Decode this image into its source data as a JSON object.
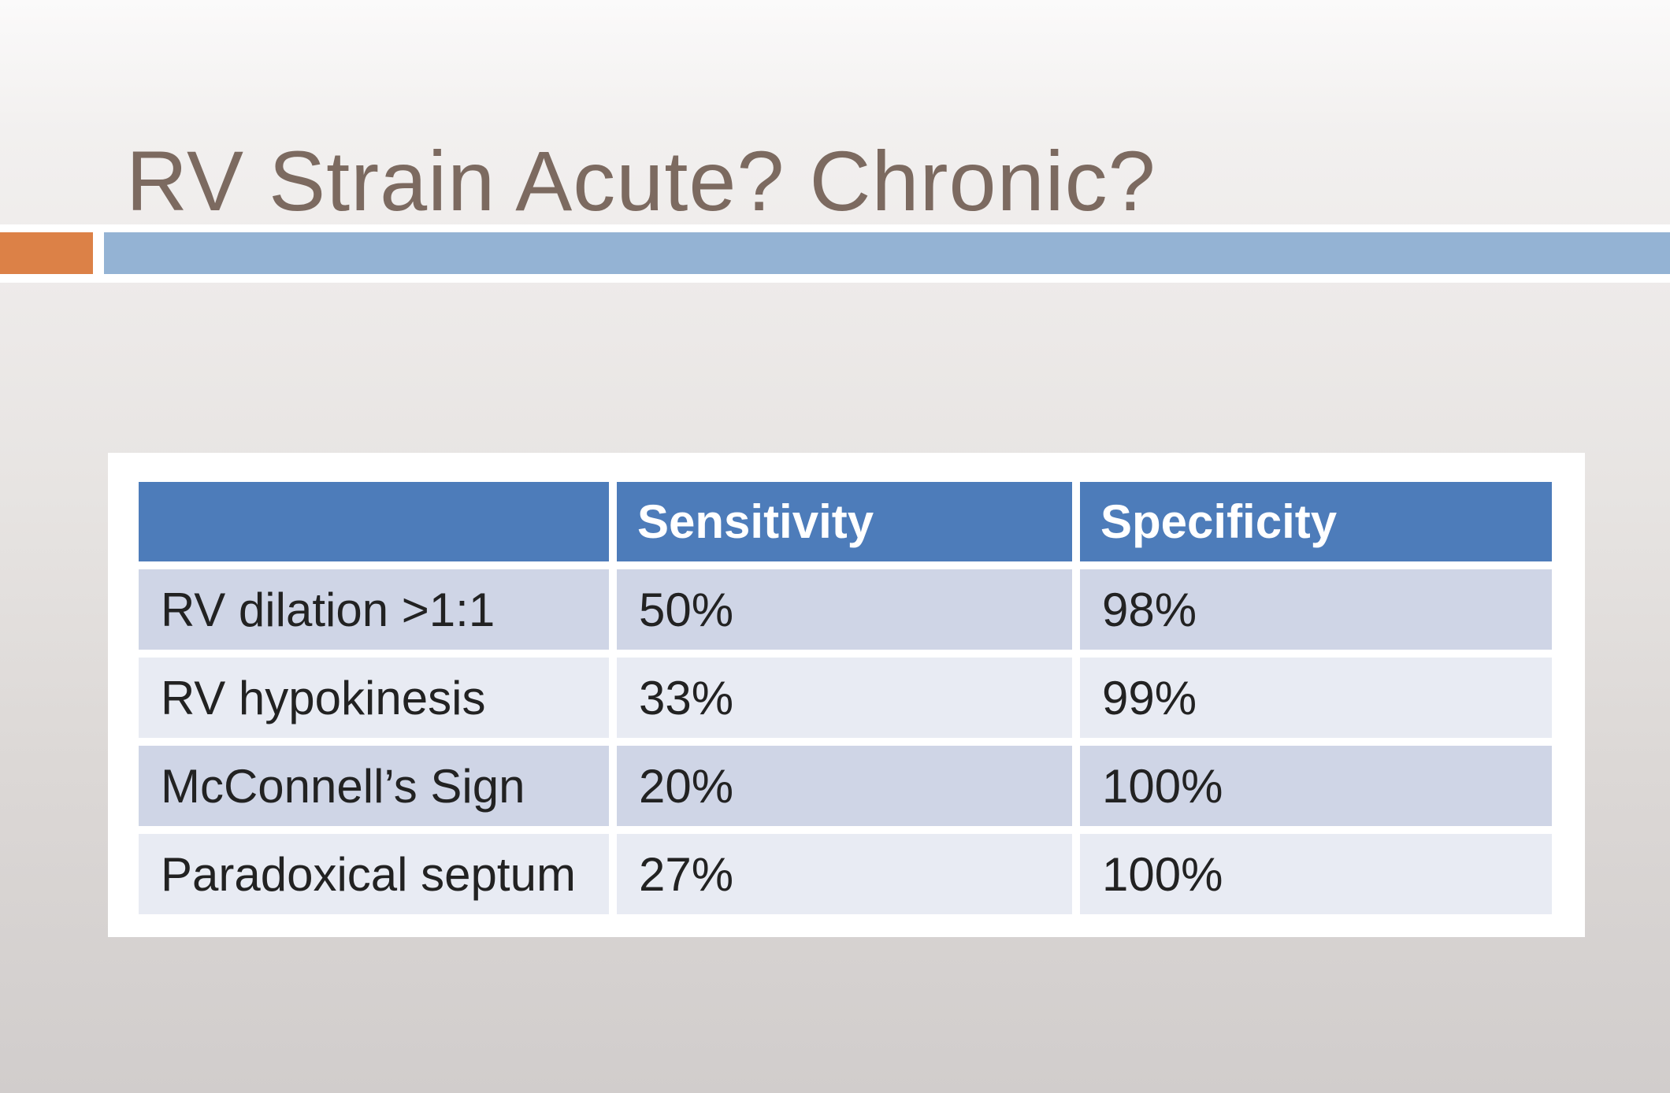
{
  "slide": {
    "title": "RV Strain Acute? Chronic?",
    "title_color": "#7c6a60"
  },
  "accent_band": {
    "orange_color": "#dc8147",
    "blue_color": "#94b3d4"
  },
  "table": {
    "header_bg": "#4d7cba",
    "row_bg_dark": "#cfd5e6",
    "row_bg_light": "#e8ebf3",
    "columns": [
      "",
      "Sensitivity",
      "Specificity"
    ],
    "rows": [
      {
        "label": "RV dilation >1:1",
        "sensitivity": "50%",
        "specificity": "98%"
      },
      {
        "label": "RV hypokinesis",
        "sensitivity": "33%",
        "specificity": "99%"
      },
      {
        "label": "McConnell’s Sign",
        "sensitivity": "20%",
        "specificity": "100%"
      },
      {
        "label": "Paradoxical septum",
        "sensitivity": "27%",
        "specificity": "100%"
      }
    ]
  }
}
